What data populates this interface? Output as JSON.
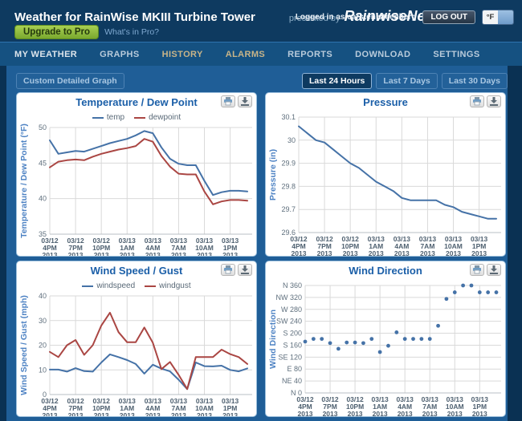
{
  "header": {
    "title": "Weather for RainWise MKIII Turbine Tower",
    "presented_by": "presented by",
    "brand": "RainwiseNet",
    "logged_in": "Logged in as carsten steenberg",
    "logout_label": "LOG OUT",
    "unit_toggle": "°F",
    "upgrade_label": "Upgrade to Pro",
    "whats_in_pro": "What's in Pro?"
  },
  "nav": {
    "items": [
      {
        "label": "MY WEATHER"
      },
      {
        "label": "GRAPHS"
      },
      {
        "label": "HISTORY"
      },
      {
        "label": "ALARMS"
      },
      {
        "label": "REPORTS"
      },
      {
        "label": "DOWNLOAD"
      },
      {
        "label": "SETTINGS"
      }
    ]
  },
  "toolbar": {
    "custom_graph_label": "Custom Detailed Graph",
    "ranges": [
      {
        "label": "Last 24 Hours",
        "active": true
      },
      {
        "label": "Last 7 Days",
        "active": false
      },
      {
        "label": "Last 30 Days",
        "active": false
      }
    ]
  },
  "chart_data": [
    {
      "type": "line",
      "title": "Temperature / Dew Point",
      "ylabel": "Temperature / Dew Point (°F)",
      "ylim": [
        35,
        50
      ],
      "yticks": [
        35,
        40,
        45,
        50
      ],
      "ytick_labels": [
        "35",
        "40",
        "45",
        "50"
      ],
      "x_labels": [
        [
          "03/12",
          "4PM",
          "2013"
        ],
        [
          "03/12",
          "7PM",
          "2013"
        ],
        [
          "03/12",
          "10PM",
          "2013"
        ],
        [
          "03/13",
          "1AM",
          "2013"
        ],
        [
          "03/13",
          "4AM",
          "2013"
        ],
        [
          "03/13",
          "7AM",
          "2013"
        ],
        [
          "03/13",
          "10AM",
          "2013"
        ],
        [
          "03/13",
          "1PM",
          "2013"
        ]
      ],
      "legend": [
        "temp",
        "dewpoint"
      ],
      "legend_position": "top",
      "grid": true,
      "series": [
        {
          "name": "temp",
          "color": "#4572A7",
          "values": [
            48.2,
            46.3,
            46.5,
            46.7,
            46.6,
            47.0,
            47.4,
            47.8,
            48.1,
            48.4,
            48.9,
            49.5,
            49.2,
            47.2,
            45.6,
            44.9,
            44.7,
            44.7,
            42.5,
            40.5,
            40.9,
            41.1,
            41.1,
            41.0
          ]
        },
        {
          "name": "dewpoint",
          "color": "#AA4643",
          "values": [
            44.4,
            45.2,
            45.4,
            45.5,
            45.4,
            45.9,
            46.3,
            46.6,
            46.9,
            47.1,
            47.4,
            48.4,
            48.0,
            46.0,
            44.5,
            43.5,
            43.4,
            43.4,
            41.0,
            39.2,
            39.6,
            39.8,
            39.8,
            39.7
          ]
        }
      ]
    },
    {
      "type": "line",
      "title": "Pressure",
      "ylabel": "Pressure (in)",
      "ylim": [
        29.6,
        30.1
      ],
      "yticks": [
        29.6,
        29.7,
        29.8,
        29.9,
        30,
        30.1
      ],
      "ytick_labels": [
        "29.6",
        "29.7",
        "29.8",
        "29.9",
        "30",
        "30.1"
      ],
      "x_labels": [
        [
          "03/12",
          "4PM",
          "2013"
        ],
        [
          "03/12",
          "7PM",
          "2013"
        ],
        [
          "03/12",
          "10PM",
          "2013"
        ],
        [
          "03/13",
          "1AM",
          "2013"
        ],
        [
          "03/13",
          "4AM",
          "2013"
        ],
        [
          "03/13",
          "7AM",
          "2013"
        ],
        [
          "03/13",
          "10AM",
          "2013"
        ],
        [
          "03/13",
          "1PM",
          "2013"
        ]
      ],
      "grid": true,
      "series": [
        {
          "name": "pressure",
          "color": "#4572A7",
          "values": [
            30.06,
            30.03,
            30.0,
            29.99,
            29.96,
            29.93,
            29.9,
            29.88,
            29.85,
            29.82,
            29.8,
            29.78,
            29.75,
            29.74,
            29.74,
            29.74,
            29.74,
            29.72,
            29.71,
            29.69,
            29.68,
            29.67,
            29.66,
            29.66
          ]
        }
      ]
    },
    {
      "type": "line",
      "title": "Wind Speed / Gust",
      "ylabel": "Wind Speed / Gust (mph)",
      "ylim": [
        0,
        40
      ],
      "yticks": [
        0,
        10,
        20,
        30,
        40
      ],
      "ytick_labels": [
        "0",
        "10",
        "20",
        "30",
        "40"
      ],
      "x_labels": [
        [
          "03/12",
          "4PM",
          "2013"
        ],
        [
          "03/12",
          "7PM",
          "2013"
        ],
        [
          "03/12",
          "10PM",
          "2013"
        ],
        [
          "03/13",
          "1AM",
          "2013"
        ],
        [
          "03/13",
          "4AM",
          "2013"
        ],
        [
          "03/13",
          "7AM",
          "2013"
        ],
        [
          "03/13",
          "10AM",
          "2013"
        ],
        [
          "03/13",
          "1PM",
          "2013"
        ]
      ],
      "legend": [
        "windspeed",
        "windgust"
      ],
      "legend_position": "top",
      "grid": true,
      "series": [
        {
          "name": "windspeed",
          "color": "#4572A7",
          "values": [
            10.1,
            10.1,
            9.3,
            10.7,
            9.5,
            9.3,
            13.0,
            16.3,
            15.2,
            14.0,
            12.4,
            8.5,
            12.1,
            10.5,
            9.4,
            6.0,
            2.2,
            13.0,
            11.5,
            11.4,
            11.7,
            10.0,
            9.4,
            10.6
          ]
        },
        {
          "name": "windgust",
          "color": "#AA4643",
          "values": [
            17.3,
            15.2,
            20.0,
            22.1,
            16.1,
            20.0,
            28.0,
            33.2,
            25.3,
            21.2,
            21.2,
            27.2,
            21.0,
            10.3,
            13.2,
            8.0,
            2.2,
            15.2,
            15.2,
            15.2,
            18.2,
            16.4,
            15.2,
            12.4
          ]
        }
      ]
    },
    {
      "type": "scatter",
      "title": "Wind Direction",
      "ylabel": "Wind Direction",
      "ylim": [
        0,
        360
      ],
      "yticks": [
        0,
        40,
        80,
        120,
        160,
        200,
        240,
        280,
        320,
        360
      ],
      "ytick_labels": [
        "N 0",
        "NE 40",
        "E 80",
        "SE 120",
        "S 160",
        "S 200",
        "SW 240",
        "W 280",
        "NW 320",
        "N 360"
      ],
      "x_labels": [
        [
          "03/12",
          "4PM",
          "2013"
        ],
        [
          "03/12",
          "7PM",
          "2013"
        ],
        [
          "03/12",
          "10PM",
          "2013"
        ],
        [
          "03/13",
          "1AM",
          "2013"
        ],
        [
          "03/13",
          "4AM",
          "2013"
        ],
        [
          "03/13",
          "7AM",
          "2013"
        ],
        [
          "03/13",
          "10AM",
          "2013"
        ],
        [
          "03/13",
          "1PM",
          "2013"
        ]
      ],
      "grid": true,
      "series": [
        {
          "name": "winddirection",
          "color": "#4572A7",
          "values": [
            172,
            181,
            181,
            167,
            148,
            169,
            169,
            167,
            181,
            137,
            158,
            203,
            181,
            181,
            181,
            181,
            225,
            315,
            337,
            360,
            360,
            337,
            337,
            337
          ]
        }
      ]
    }
  ]
}
